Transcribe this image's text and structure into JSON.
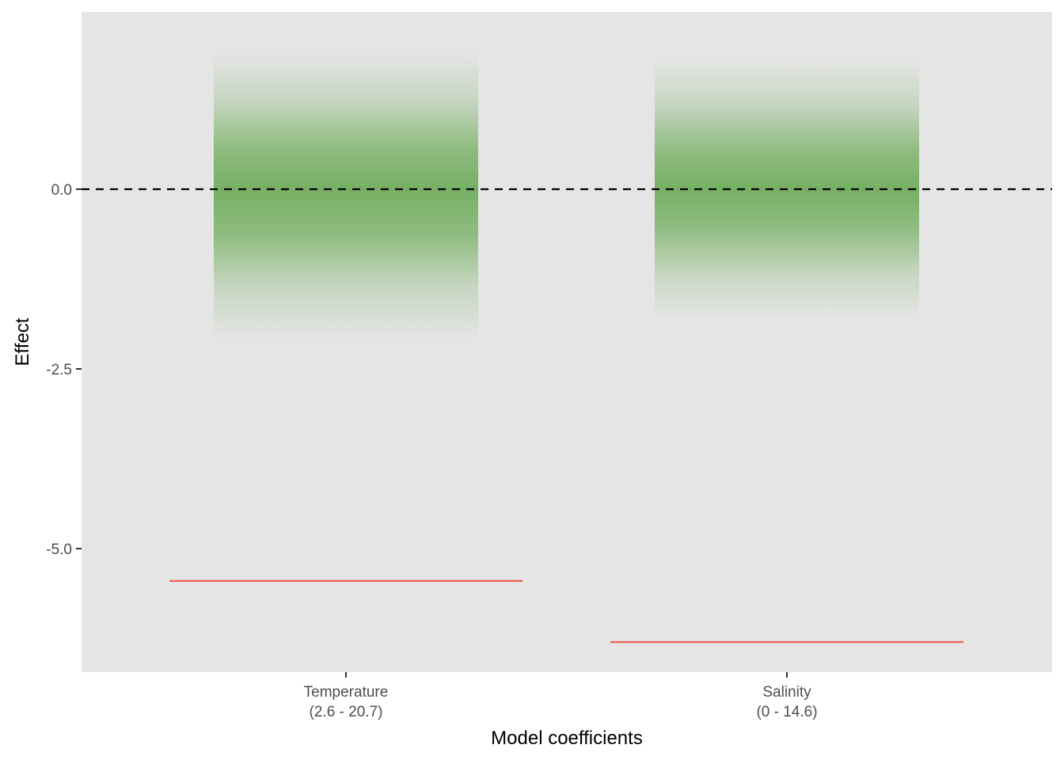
{
  "chart_data": {
    "type": "bar",
    "xlabel": "Model coefficients",
    "ylabel": "Effect",
    "ylim": [
      -6.7,
      2.5
    ],
    "yticks": [
      0.0,
      -2.5,
      -5.0
    ],
    "ytick_labels": [
      "0.0",
      "-2.5",
      "-5.0"
    ],
    "grid": false,
    "legend": "none",
    "categories": [
      {
        "line1": "Temperature",
        "line2": "(2.6 - 20.7)"
      },
      {
        "line1": "Salinity",
        "line2": "(0 - 14.6)"
      }
    ],
    "gradient_intervals": [
      {
        "center": 0.0,
        "low": -2.1,
        "high": 1.9
      },
      {
        "center": 0.0,
        "low": -1.8,
        "high": 1.8
      }
    ],
    "reference_values": [
      -5.45,
      -6.3
    ],
    "reference_line": 0.0,
    "colors": {
      "panel": "#e5e5e5",
      "gradient": "#6aaa55",
      "reference": "#f0645e",
      "zero_line": "#000000"
    }
  }
}
